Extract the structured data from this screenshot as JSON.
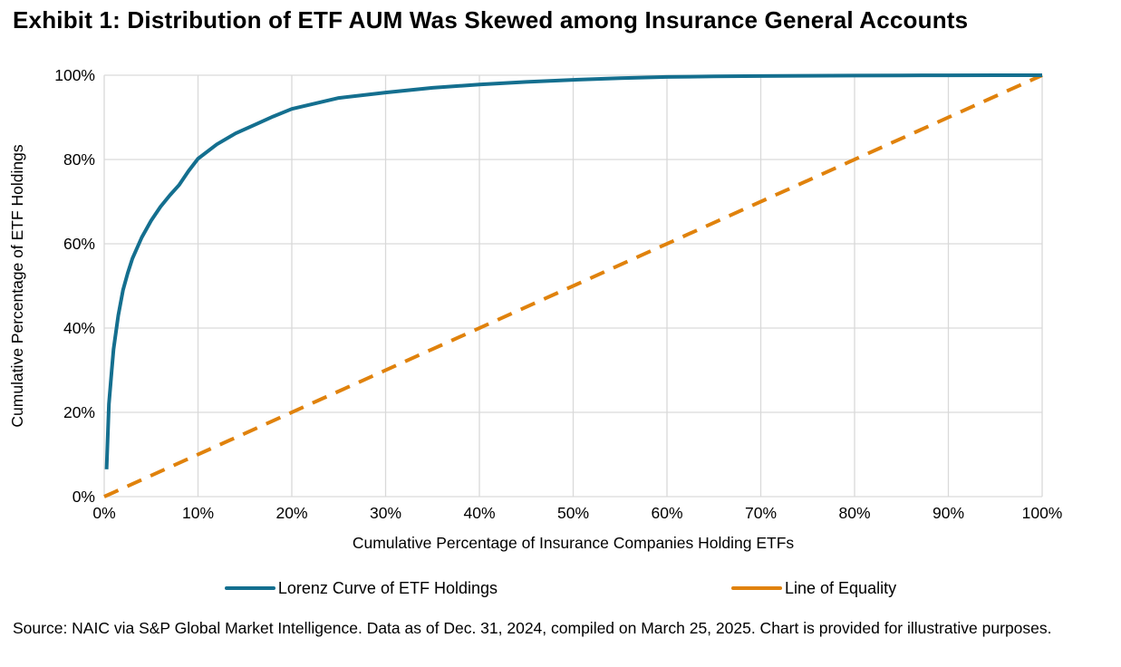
{
  "header": {
    "title": "Exhibit 1: Distribution of ETF AUM Was Skewed among Insurance General Accounts"
  },
  "footer": {
    "source": "Source: NAIC via S&P Global Market Intelligence. Data as of Dec. 31, 2024, compiled on March 25, 2025. Chart is provided for illustrative purposes."
  },
  "colors": {
    "lorenz_teal": "#146f8f",
    "equality_orange": "#e0820c",
    "gridline_gray": "#d9d9d9",
    "text_black": "#000000"
  },
  "chart_data": {
    "type": "line",
    "title": "Exhibit 1: Distribution of ETF AUM Was Skewed among Insurance General Accounts",
    "xlabel": "Cumulative Percentage of Insurance Companies Holding ETFs",
    "ylabel": "Cumulative Percentage of ETF Holdings",
    "xlim": [
      0,
      100
    ],
    "ylim": [
      0,
      100
    ],
    "x_ticks": [
      0,
      10,
      20,
      30,
      40,
      50,
      60,
      70,
      80,
      90,
      100
    ],
    "y_ticks": [
      0,
      20,
      40,
      60,
      80,
      100
    ],
    "tick_suffix": "%",
    "grid": true,
    "legend_position": "bottom",
    "series": [
      {
        "name": "Lorenz Curve of ETF Holdings",
        "color": "#146f8f",
        "style": "solid",
        "stroke_width": 4,
        "points": [
          [
            0.25,
            6.5
          ],
          [
            0.5,
            22
          ],
          [
            0.8,
            30
          ],
          [
            1,
            35
          ],
          [
            1.5,
            43
          ],
          [
            2,
            49
          ],
          [
            2.5,
            53
          ],
          [
            3,
            56.5
          ],
          [
            4,
            61.5
          ],
          [
            5,
            65.5
          ],
          [
            6,
            68.8
          ],
          [
            7,
            71.5
          ],
          [
            8,
            74
          ],
          [
            9,
            77.3
          ],
          [
            10,
            80.2
          ],
          [
            12,
            83.6
          ],
          [
            14,
            86.2
          ],
          [
            16,
            88.2
          ],
          [
            18,
            90.2
          ],
          [
            20,
            92
          ],
          [
            25,
            94.6
          ],
          [
            30,
            95.9
          ],
          [
            35,
            97
          ],
          [
            40,
            97.8
          ],
          [
            45,
            98.4
          ],
          [
            50,
            98.9
          ],
          [
            55,
            99.3
          ],
          [
            60,
            99.6
          ],
          [
            65,
            99.72
          ],
          [
            70,
            99.8
          ],
          [
            75,
            99.87
          ],
          [
            80,
            99.92
          ],
          [
            85,
            99.96
          ],
          [
            90,
            99.98
          ],
          [
            95,
            100
          ],
          [
            100,
            100
          ]
        ]
      },
      {
        "name": "Line of Equality",
        "color": "#e0820c",
        "style": "dashed",
        "stroke_width": 4,
        "points": [
          [
            0,
            0
          ],
          [
            100,
            100
          ]
        ]
      }
    ]
  }
}
